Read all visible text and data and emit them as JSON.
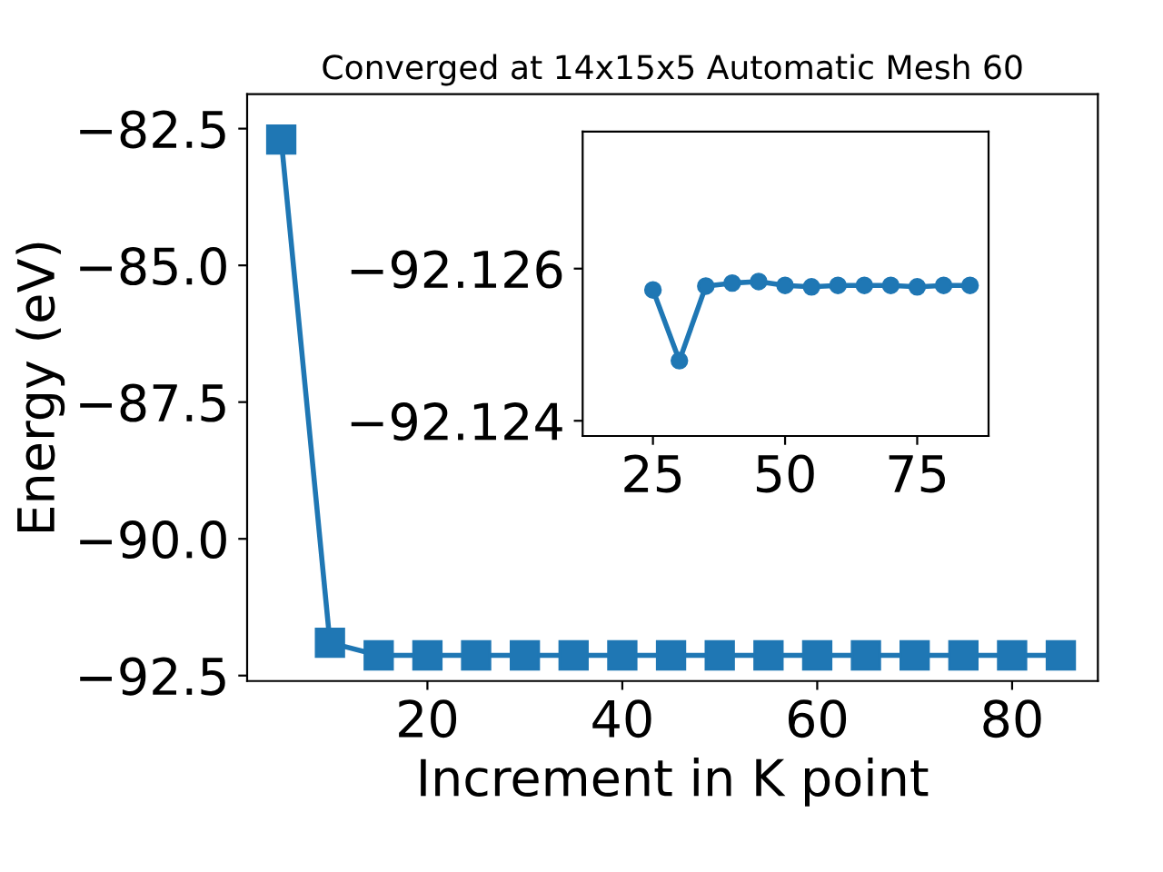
{
  "chart_data": [
    {
      "type": "line",
      "title": "Converged at 14x15x5 Automatic Mesh 60",
      "xlabel": "Increment in K point",
      "ylabel": "Energy (eV)",
      "x": [
        5,
        10,
        15,
        20,
        25,
        30,
        35,
        40,
        45,
        50,
        55,
        60,
        65,
        70,
        75,
        80,
        85
      ],
      "series": [
        {
          "color": "#1f77b4",
          "values": [
            -82.7,
            -91.9,
            -92.13,
            -92.13,
            -92.13,
            -92.13,
            -92.13,
            -92.13,
            -92.13,
            -92.13,
            -92.13,
            -92.13,
            -92.13,
            -92.13,
            -92.13,
            -92.13,
            -92.13
          ]
        }
      ],
      "xlim": [
        1.5,
        88.8
      ],
      "xticks": [
        20,
        40,
        60,
        80
      ],
      "ylim": [
        -92.6,
        -81.87
      ],
      "yticks": [
        {
          "value": -92.5,
          "label": "−92.5"
        },
        {
          "value": -90,
          "label": "−90.0"
        },
        {
          "value": -87.5,
          "label": "−87.5"
        },
        {
          "value": -85,
          "label": "−85.0"
        },
        {
          "value": -82.5,
          "label": "−82.5"
        }
      ],
      "marker": "square",
      "line_style": "solid",
      "grid": false,
      "legend": false
    },
    {
      "type": "line",
      "x": [
        25,
        30,
        35,
        40,
        45,
        50,
        55,
        60,
        65,
        70,
        75,
        80,
        85
      ],
      "series": [
        {
          "color": "#1f77b4",
          "values": [
            -92.12572,
            -92.12479,
            -92.12577,
            -92.12581,
            -92.12583,
            -92.12578,
            -92.12576,
            -92.12578,
            -92.12578,
            -92.12578,
            -92.12576,
            -92.12578,
            -92.12578
          ]
        }
      ],
      "xlim": [
        11.7,
        88.5
      ],
      "xticks": [
        25,
        50,
        75
      ],
      "ylim": [
        -92.1238,
        -92.1278
      ],
      "yticks": [
        {
          "value": -92.124,
          "label": "−92.124"
        },
        {
          "value": -92.126,
          "label": "−92.126"
        }
      ],
      "marker": "circle",
      "line_style": "solid",
      "grid": false,
      "legend": false
    }
  ]
}
